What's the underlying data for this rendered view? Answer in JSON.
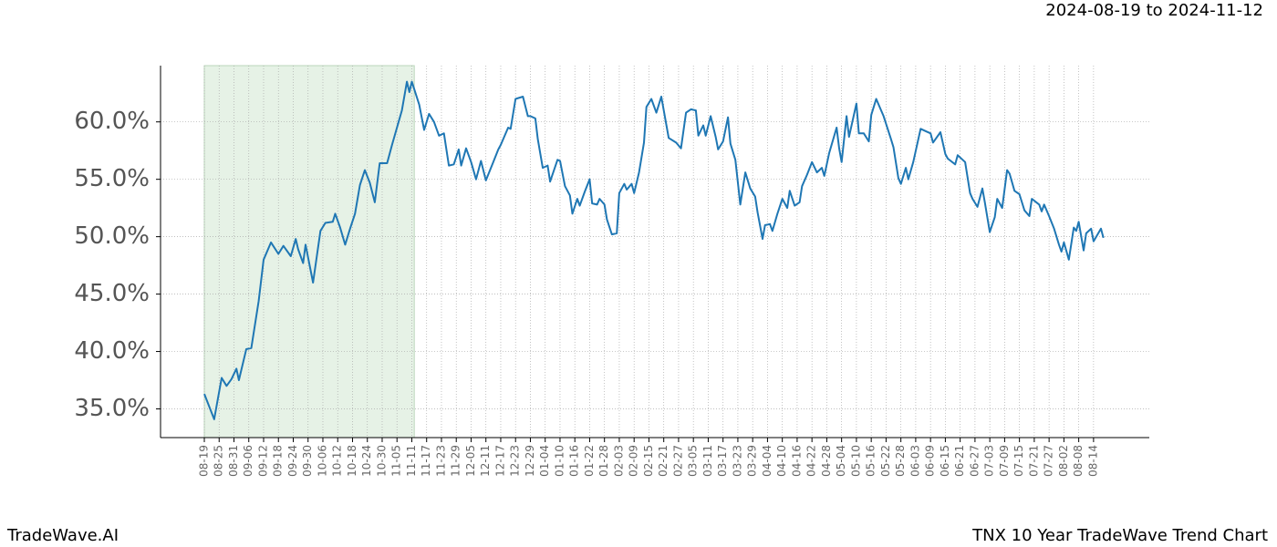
{
  "header": {
    "date_range": "2024-08-19 to 2024-11-12"
  },
  "footer": {
    "brand": "TradeWave.AI",
    "chart_name": "TNX 10 Year TradeWave Trend Chart"
  },
  "chart_data": {
    "type": "line",
    "color": "#1f77b4",
    "grid": true,
    "shade": [
      "08-19",
      "11-12"
    ],
    "shade_color": "#e6f2e6",
    "ylim": [
      32.5,
      64.9
    ],
    "yticks": [
      {
        "value": 35,
        "label": "35.0%"
      },
      {
        "value": 40,
        "label": "40.0%"
      },
      {
        "value": 45,
        "label": "45.0%"
      },
      {
        "value": 50,
        "label": "50.0%"
      },
      {
        "value": 55,
        "label": "55.0%"
      },
      {
        "value": 60,
        "label": "60.0%"
      }
    ],
    "xticks": [
      "08-19",
      "08-25",
      "08-31",
      "09-06",
      "09-12",
      "09-18",
      "09-24",
      "09-30",
      "10-06",
      "10-12",
      "10-18",
      "10-24",
      "10-30",
      "11-05",
      "11-11",
      "11-17",
      "11-23",
      "11-29",
      "12-05",
      "12-11",
      "12-17",
      "12-23",
      "12-29",
      "01-04",
      "01-10",
      "01-16",
      "01-22",
      "01-28",
      "02-03",
      "02-09",
      "02-15",
      "02-21",
      "02-27",
      "03-05",
      "03-11",
      "03-17",
      "03-23",
      "03-29",
      "04-04",
      "04-10",
      "04-16",
      "04-22",
      "04-28",
      "05-04",
      "05-10",
      "05-16",
      "05-22",
      "05-28",
      "06-03",
      "06-09",
      "06-15",
      "06-21",
      "06-27",
      "07-03",
      "07-09",
      "07-15",
      "07-21",
      "07-27",
      "08-02",
      "08-08",
      "08-14"
    ],
    "x": [
      "08-19",
      "08-21",
      "08-23",
      "08-26",
      "08-28",
      "08-30",
      "09-01",
      "09-02",
      "09-05",
      "09-07",
      "09-10",
      "09-12",
      "09-15",
      "09-18",
      "09-20",
      "09-23",
      "09-25",
      "09-26",
      "09-28",
      "09-29",
      "10-02",
      "10-03",
      "10-05",
      "10-07",
      "10-10",
      "10-11",
      "10-13",
      "10-15",
      "10-17",
      "10-19",
      "10-21",
      "10-23",
      "10-25",
      "10-27",
      "10-29",
      "11-01",
      "11-03",
      "11-07",
      "11-09",
      "11-10",
      "11-11",
      "11-14",
      "11-16",
      "11-18",
      "11-20",
      "11-22",
      "11-24",
      "11-26",
      "11-28",
      "11-30",
      "12-01",
      "12-03",
      "12-05",
      "12-07",
      "12-09",
      "12-11",
      "12-14",
      "12-16",
      "12-17",
      "12-20",
      "12-21",
      "12-23",
      "12-26",
      "12-28",
      "12-29",
      "12-31",
      "01-01",
      "01-03",
      "01-05",
      "01-06",
      "01-09",
      "01-10",
      "01-12",
      "01-14",
      "01-15",
      "01-17",
      "01-18",
      "01-20",
      "01-22",
      "01-23",
      "01-25",
      "01-26",
      "01-28",
      "01-29",
      "01-31",
      "02-02",
      "02-03",
      "02-05",
      "02-06",
      "02-08",
      "02-09",
      "02-11",
      "02-13",
      "02-14",
      "02-16",
      "02-18",
      "02-20",
      "02-21",
      "02-23",
      "02-26",
      "02-28",
      "03-02",
      "03-04",
      "03-06",
      "03-07",
      "03-09",
      "03-10",
      "03-12",
      "03-14",
      "03-15",
      "03-17",
      "03-19",
      "03-20",
      "03-22",
      "03-24",
      "03-26",
      "03-28",
      "03-30",
      "03-31",
      "04-02",
      "04-03",
      "04-05",
      "04-06",
      "04-08",
      "04-10",
      "04-12",
      "04-13",
      "04-15",
      "04-17",
      "04-18",
      "04-20",
      "04-22",
      "04-24",
      "04-26",
      "04-27",
      "04-29",
      "05-02",
      "05-03",
      "05-04",
      "05-06",
      "05-07",
      "05-10",
      "05-11",
      "05-13",
      "05-15",
      "05-16",
      "05-18",
      "05-20",
      "05-21",
      "05-24",
      "05-25",
      "05-27",
      "05-28",
      "05-30",
      "05-31",
      "06-02",
      "06-05",
      "06-07",
      "06-09",
      "06-10",
      "06-13",
      "06-15",
      "06-16",
      "06-19",
      "06-20",
      "06-23",
      "06-25",
      "06-26",
      "06-28",
      "06-30",
      "07-01",
      "07-03",
      "07-05",
      "07-06",
      "07-08",
      "07-10",
      "07-11",
      "07-13",
      "07-15",
      "07-17",
      "07-19",
      "07-20",
      "07-23",
      "07-24",
      "07-25",
      "07-27",
      "07-29",
      "07-31",
      "08-01",
      "08-02",
      "08-04",
      "08-06",
      "08-07",
      "08-08",
      "08-10",
      "08-11",
      "08-13",
      "08-14",
      "08-17",
      "08-18"
    ],
    "values": [
      36.3,
      35.2,
      34.1,
      37.7,
      37.0,
      37.6,
      38.5,
      37.5,
      40.2,
      40.3,
      44.4,
      48.0,
      49.5,
      48.5,
      49.2,
      48.3,
      49.8,
      48.9,
      47.7,
      49.3,
      46.0,
      47.5,
      50.5,
      51.2,
      51.3,
      52.0,
      50.8,
      49.3,
      50.7,
      52.0,
      54.5,
      55.8,
      54.7,
      53.0,
      56.4,
      56.4,
      58.0,
      61.0,
      63.5,
      62.6,
      63.5,
      61.5,
      59.3,
      60.7,
      60.0,
      58.8,
      59.0,
      56.2,
      56.3,
      57.6,
      56.2,
      57.7,
      56.5,
      55.0,
      56.6,
      54.9,
      56.5,
      57.6,
      58.0,
      59.5,
      59.4,
      62.0,
      62.2,
      60.5,
      60.5,
      60.3,
      58.5,
      56.0,
      56.2,
      54.8,
      56.7,
      56.6,
      54.4,
      53.6,
      52.0,
      53.3,
      52.7,
      53.9,
      55.0,
      52.9,
      52.8,
      53.3,
      52.8,
      51.5,
      50.2,
      50.3,
      53.8,
      54.6,
      54.1,
      54.6,
      53.8,
      55.6,
      58.2,
      61.3,
      62.0,
      60.8,
      62.2,
      61.0,
      58.6,
      58.2,
      57.7,
      60.8,
      61.1,
      61.0,
      58.8,
      59.7,
      58.8,
      60.5,
      58.7,
      57.6,
      58.3,
      60.4,
      58.1,
      56.7,
      52.8,
      55.6,
      54.2,
      53.5,
      52.1,
      49.8,
      51.0,
      51.1,
      50.5,
      52.0,
      53.3,
      52.5,
      54.0,
      52.7,
      53.0,
      54.4,
      55.4,
      56.5,
      55.6,
      56.0,
      55.3,
      57.3,
      59.5,
      57.7,
      56.5,
      60.5,
      58.7,
      61.6,
      59.0,
      59.0,
      58.3,
      60.6,
      62.0,
      61.0,
      60.5,
      58.5,
      57.8,
      55.1,
      54.6,
      56.0,
      55.0,
      56.5,
      59.4,
      59.2,
      59.0,
      58.2,
      59.1,
      57.2,
      56.8,
      56.3,
      57.1,
      56.5,
      53.8,
      53.3,
      52.6,
      54.2,
      53.0,
      50.4,
      51.7,
      53.3,
      52.5,
      55.8,
      55.5,
      54.0,
      53.7,
      52.3,
      51.8,
      53.3,
      52.8,
      52.2,
      52.8,
      51.8,
      50.7,
      49.3,
      48.7,
      49.5,
      48.0,
      50.8,
      50.5,
      51.3,
      48.8,
      50.3,
      50.7,
      49.6,
      50.7,
      49.9
    ]
  }
}
